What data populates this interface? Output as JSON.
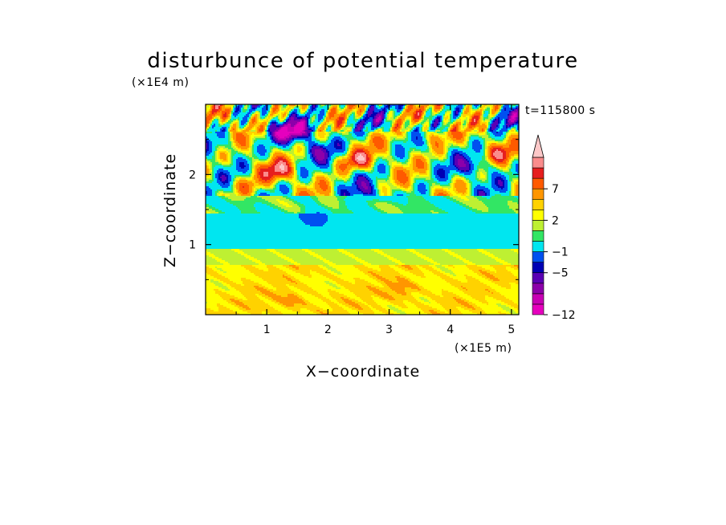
{
  "chart_data": {
    "type": "heatmap",
    "title": "disturbunce of potential temperature",
    "xlabel": "X−coordinate",
    "ylabel": "Z−coordinate",
    "x_unit": "(×1E5 m)",
    "y_unit": "(×1E4 m)",
    "time_label": "t=115800 s",
    "xlim": [
      0,
      5.12
    ],
    "ylim": [
      0,
      3.0
    ],
    "x_ticks": [
      {
        "value": 1,
        "label": "1"
      },
      {
        "value": 2,
        "label": "2"
      },
      {
        "value": 3,
        "label": "3"
      },
      {
        "value": 4,
        "label": "4"
      },
      {
        "value": 5,
        "label": "5"
      }
    ],
    "y_ticks": [
      {
        "value": 1,
        "label": "1"
      },
      {
        "value": 2,
        "label": "2"
      }
    ],
    "colorbar": {
      "levels": [
        -12,
        -10,
        -8,
        -6,
        -5,
        -3,
        -1,
        0,
        1,
        2,
        3,
        5,
        7,
        9,
        11
      ],
      "colors": [
        "#e600be",
        "#c800b4",
        "#8c00aa",
        "#5a00b4",
        "#0000b4",
        "#0050f0",
        "#00e6f0",
        "#32e664",
        "#bef032",
        "#ffff00",
        "#ffd200",
        "#ff9600",
        "#ff5a00",
        "#e61e1e",
        "#fa8c8c",
        "#fcc8c8"
      ],
      "tick_labels": [
        {
          "value": 7,
          "label": "7"
        },
        {
          "value": 2,
          "label": "2"
        },
        {
          "value": -1,
          "label": "−1"
        },
        {
          "value": -5,
          "label": "−5"
        },
        {
          "value": -12,
          "label": "−12"
        }
      ]
    },
    "features": [
      {
        "x": 1.3,
        "z": 2.6,
        "value": -9
      },
      {
        "x": 1.6,
        "z": 2.65,
        "value": -7
      },
      {
        "x": 2.7,
        "z": 2.75,
        "value": -5
      },
      {
        "x": 4.4,
        "z": 2.1,
        "value": -6
      },
      {
        "x": 1.8,
        "z": 2.35,
        "value": -5
      },
      {
        "x": 2.7,
        "z": 1.75,
        "value": -5
      },
      {
        "x": 1.8,
        "z": 1.4,
        "value": -4
      },
      {
        "x": 0.25,
        "z": 2.4,
        "value": -4
      },
      {
        "x": 4.9,
        "z": 2.8,
        "value": -5
      },
      {
        "x": 1.2,
        "z": 2.05,
        "value": 8
      },
      {
        "x": 2.5,
        "z": 2.2,
        "value": 8
      },
      {
        "x": 3.7,
        "z": 2.55,
        "value": 5
      },
      {
        "x": 4.8,
        "z": 2.3,
        "value": 5
      },
      {
        "x": 0.6,
        "z": 1.85,
        "value": 4
      },
      {
        "x": 0.3,
        "z": 2.85,
        "value": 4
      },
      {
        "x": 3.3,
        "z": 2.85,
        "value": 4
      },
      {
        "x": 2.0,
        "z": 1.6,
        "value": 2
      },
      {
        "x": 3.7,
        "z": 1.35,
        "value": -1
      },
      {
        "x": 1.4,
        "z": 0.2,
        "value": 2
      },
      {
        "x": 3.2,
        "z": 0.35,
        "value": 2
      }
    ]
  }
}
